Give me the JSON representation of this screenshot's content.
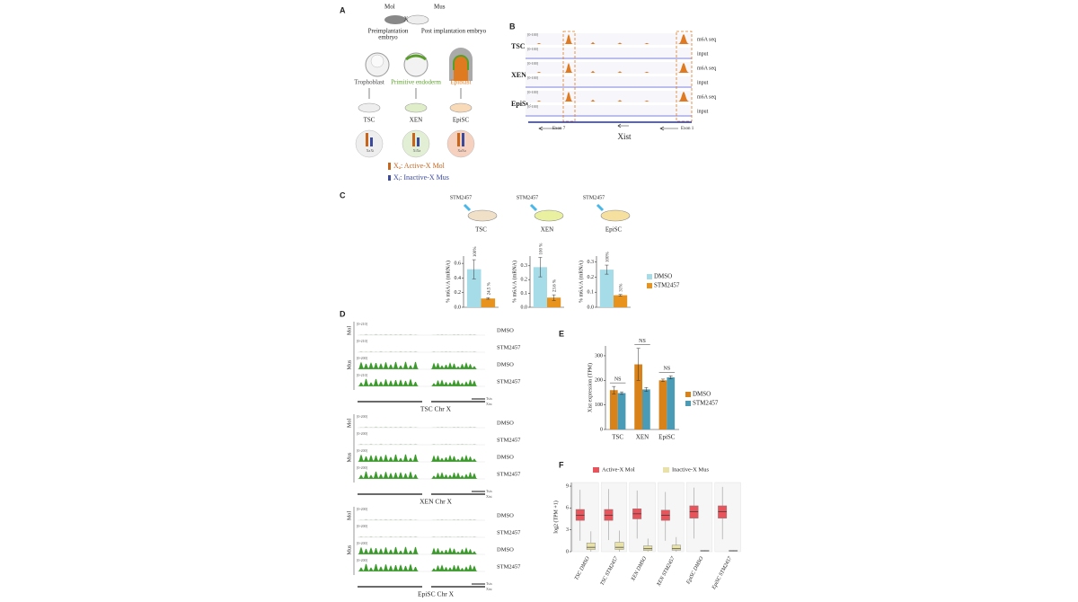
{
  "panel_a": {
    "label": "A",
    "parents": [
      "Mol",
      "Mus"
    ],
    "cross": "X",
    "stages": [
      [
        "Preimplantation",
        "embryo"
      ],
      [
        "Post implantation embryo"
      ]
    ],
    "lineages": [
      {
        "text": "Trophoblast",
        "color": "#444"
      },
      {
        "text": "Primitive endoderm",
        "color": "#5a9e2a"
      },
      {
        "text": "Epiblast",
        "color": "#e07a20"
      }
    ],
    "cells": [
      "TSC",
      "XEN",
      "EpiSC"
    ],
    "chrom_labels": [
      "XaXi",
      "XiXa",
      "XaXa"
    ],
    "legend": [
      {
        "symbol": "X",
        "sub": "a",
        "text": ": Active-X Mol",
        "color": "#c8651b"
      },
      {
        "symbol": "X",
        "sub": "i",
        "text": ": Inactive-X Mus",
        "color": "#3b4a9a"
      }
    ]
  },
  "panel_b": {
    "label": "B",
    "rows": [
      "TSC",
      "XEN",
      "EpiSC"
    ],
    "tracks": [
      "m6A seq",
      "input"
    ],
    "ranges": [
      [
        "[0-100]",
        "[0-100]"
      ],
      [
        "[0-100]",
        "[0-100]"
      ],
      [
        "[0-100]",
        "[0-100]"
      ]
    ],
    "exons": [
      "Exon 7",
      "Exon 1"
    ],
    "gene": "Xist"
  },
  "panel_c": {
    "label": "C",
    "legend": [
      {
        "name": "DMSO",
        "color": "#a6dbe8"
      },
      {
        "name": "STM2457",
        "color": "#e8931e"
      }
    ]
  },
  "panel_d": {
    "label": "D",
    "blocks": [
      {
        "title": "TSC Chr X",
        "groups": [
          "Mol",
          "Mus"
        ],
        "tracks": [
          "DMSO",
          "STM2457",
          "DMSO",
          "STM2457"
        ],
        "ranges": [
          "[0-210]",
          "[0-210]",
          "[0-200]",
          "[0-210]"
        ],
        "genes": [
          "Tsix",
          "Xist"
        ]
      },
      {
        "title": "XEN Chr X",
        "groups": [
          "Mol",
          "Mus"
        ],
        "tracks": [
          "DMSO",
          "STM2457",
          "DMSO",
          "STM2457"
        ],
        "ranges": [
          "[0-200]",
          "[0-200]",
          "[0-200]",
          "[0-200]"
        ],
        "genes": [
          "Tsix",
          "Xist"
        ]
      },
      {
        "title": "EpiSC Chr X",
        "groups": [
          "Mol",
          "Mus"
        ],
        "tracks": [
          "DMSO",
          "STM2457",
          "DMSO",
          "STM2457"
        ],
        "ranges": [
          "[0-200]",
          "[0-200]",
          "[0-200]",
          "[0-200]"
        ],
        "genes": [
          "Tsix",
          "Xist"
        ]
      }
    ]
  },
  "panel_e": {
    "label": "E"
  },
  "panel_f": {
    "label": "F"
  },
  "chart_data": [
    {
      "type": "bar",
      "title": "TSC",
      "treatment": "STM2457",
      "ylabel": "% m6A/A (mRNA)",
      "ylim": [
        0,
        0.7
      ],
      "yticks": [
        {
          "value": 0,
          "label": "0.0"
        },
        0.2,
        0.4,
        0.6
      ],
      "series": [
        {
          "values": [
            0.52
          ],
          "errors": [
            0.13
          ],
          "annotations": [
            "100%"
          ]
        },
        {
          "values": [
            0.12
          ],
          "errors": [
            0.01
          ],
          "annotations": [
            "24.5 %"
          ]
        }
      ]
    },
    {
      "type": "bar",
      "title": "XEN",
      "treatment": "STM2457",
      "ylabel": "% m6A/A (mRNA)",
      "ylim": [
        0,
        0.37
      ],
      "yticks": [
        {
          "value": 0,
          "label": "0.0"
        },
        0.1,
        0.2,
        0.3
      ],
      "series": [
        {
          "values": [
            0.29
          ],
          "errors": [
            0.07
          ],
          "annotations": [
            "100 %"
          ]
        },
        {
          "values": [
            0.07
          ],
          "errors": [
            0.02
          ],
          "annotations": [
            "23.6 %"
          ]
        }
      ]
    },
    {
      "type": "bar",
      "title": "EpiSC",
      "treatment": "STM2457",
      "ylabel": "% m6A/A (mRNA)",
      "ylim": [
        0,
        0.34
      ],
      "yticks": [
        {
          "value": 0,
          "label": "0.0"
        },
        0.1,
        0.2,
        0.3
      ],
      "series": [
        {
          "values": [
            0.25
          ],
          "errors": [
            0.03
          ],
          "annotations": [
            "100%"
          ]
        },
        {
          "values": [
            0.08
          ],
          "errors": [
            0.005
          ],
          "annotations": [
            "31%"
          ]
        }
      ]
    },
    {
      "type": "bar",
      "ylabel": "Xist expression (TPM)",
      "categories": [
        "TSC",
        "XEN",
        "EpiSC"
      ],
      "ylim": [
        0,
        340
      ],
      "yticks": [
        0,
        100,
        200,
        300
      ],
      "annotations": [
        "NS",
        "NS",
        "NS"
      ],
      "series": [
        {
          "name": "DMSO",
          "color": "#d9821a",
          "values": [
            160,
            265,
            200
          ],
          "errors": [
            15,
            65,
            5
          ]
        },
        {
          "name": "STM2457",
          "color": "#4a9bb5",
          "values": [
            148,
            163,
            212
          ],
          "errors": [
            5,
            8,
            6
          ]
        }
      ]
    },
    {
      "type": "box",
      "ylabel": "log2 (TPM +1)",
      "categories": [
        "TSC DMSO",
        "TSC STM2457",
        "XEN DMSO",
        "XEN STM2457",
        "EpiSC DMSO",
        "EpiSC STM2457"
      ],
      "ylim": [
        0,
        9.5
      ],
      "yticks": [
        0,
        3,
        6,
        9
      ],
      "series": [
        {
          "name": "Active-X Mol",
          "color": "#e8545c",
          "whisker_low": [
            1.5,
            1.6,
            1.8,
            1.5,
            1.8,
            1.7
          ],
          "q1": [
            4.3,
            4.3,
            4.5,
            4.3,
            4.6,
            4.6
          ],
          "median": [
            5.0,
            5.0,
            5.2,
            5.0,
            5.5,
            5.5
          ],
          "q3": [
            5.8,
            5.8,
            5.9,
            5.7,
            6.3,
            6.3
          ],
          "whisker_high": [
            8.5,
            8.6,
            8.4,
            8.2,
            8.8,
            8.9
          ]
        },
        {
          "name": "Inactive-X Mus",
          "color": "#e8e2a8",
          "whisker_low": [
            0,
            0,
            0,
            0,
            0.05,
            0.05
          ],
          "q1": [
            0.3,
            0.3,
            0.15,
            0.2,
            0.1,
            0.1
          ],
          "median": [
            0.6,
            0.6,
            0.4,
            0.4,
            0.12,
            0.12
          ],
          "q3": [
            1.2,
            1.3,
            0.8,
            0.9,
            0.15,
            0.15
          ],
          "whisker_high": [
            2.8,
            2.9,
            1.8,
            2.0,
            0.2,
            0.2
          ]
        }
      ]
    }
  ]
}
